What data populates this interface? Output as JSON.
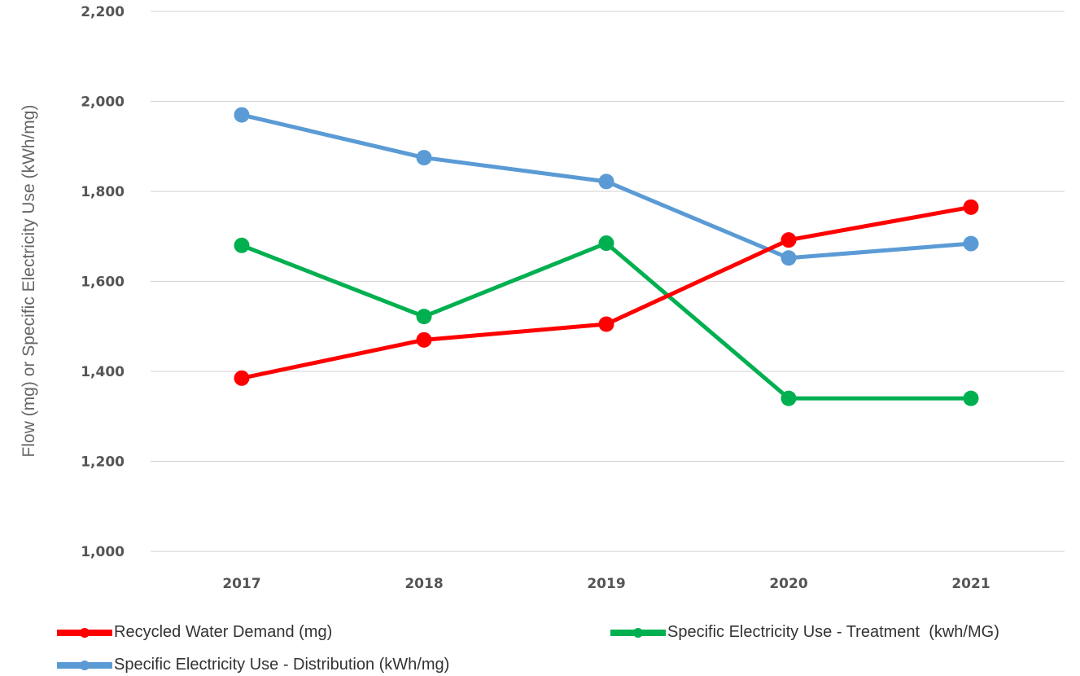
{
  "chart_data": {
    "type": "line",
    "title": "",
    "xlabel": "",
    "ylabel": "Flow (mg) or Specific Electricity Use (kWh/mg)",
    "categories": [
      "2017",
      "2018",
      "2019",
      "2020",
      "2021"
    ],
    "ylim": [
      1000,
      2200
    ],
    "yticks": [
      "1,000",
      "1,200",
      "1,400",
      "1,600",
      "1,800",
      "2,000",
      "2,200"
    ],
    "grid": true,
    "legend_position": "bottom",
    "series": [
      {
        "name": "Recycled Water Demand (mg)",
        "color": "#ff0000",
        "values": [
          1385,
          1470,
          1505,
          1692,
          1765
        ]
      },
      {
        "name": "Specific Electricity Use - Treatment  (kwh/MG)",
        "color": "#00b050",
        "values": [
          1680,
          1522,
          1685,
          1340,
          1340
        ]
      },
      {
        "name": "Specific Electricity Use - Distribution (kWh/mg)",
        "color": "#5b9bd5",
        "values": [
          1970,
          1875,
          1822,
          1652,
          1684
        ]
      }
    ]
  }
}
